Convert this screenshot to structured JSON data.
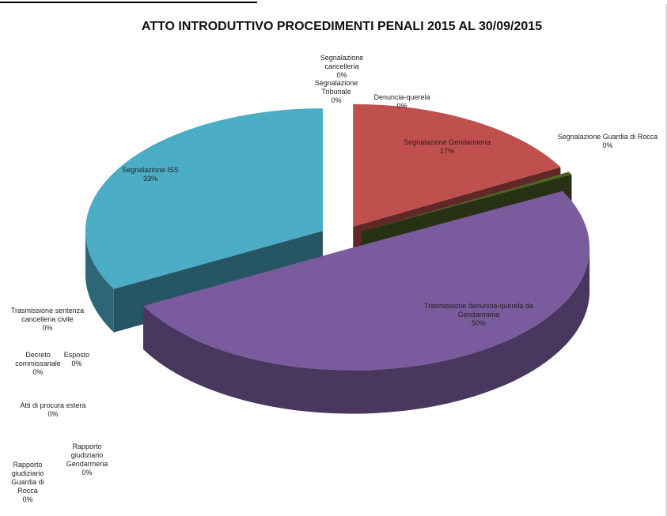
{
  "chart_data": {
    "type": "pie3d",
    "title": "ATTO INTRODUTTIVO PROCEDIMENTI PENALI 2015 AL 30/09/2015",
    "categories": [
      "Segnalazione cancelleria",
      "Segnalazione Tribunale",
      "Denuncia-querela",
      "Segnalazione Gendarmeria",
      "Segnalazione Guardia di Rocca",
      "Trasmissione denuncia-querela da Gendarmeria",
      "Trasmissione sentenza cancelleria civile",
      "Esposto",
      "Decreto commissariale",
      "Atti di procura estera",
      "Rapporto giudiziario Gendarmeria",
      "Rapporto giudiziario Guardia di Rocca",
      "Segnalazione ISS"
    ],
    "values": [
      0,
      0,
      0,
      17,
      0.4,
      50,
      0,
      0,
      0,
      0,
      0,
      0,
      33
    ],
    "value_labels": [
      "0%",
      "0%",
      "0%",
      "17%",
      "0%",
      "50%",
      "0%",
      "0%",
      "0%",
      "0%",
      "0%",
      "0%",
      "33%"
    ],
    "colors": [
      "#4f81bd",
      "#f79646",
      "#9bbb59",
      "#c0504d",
      "#4f6228",
      "#7a5c9e",
      "#4bacc6",
      "#f79646",
      "#4f81bd",
      "#c0504d",
      "#9bbb59",
      "#8064a2",
      "#4bacc6"
    ]
  }
}
